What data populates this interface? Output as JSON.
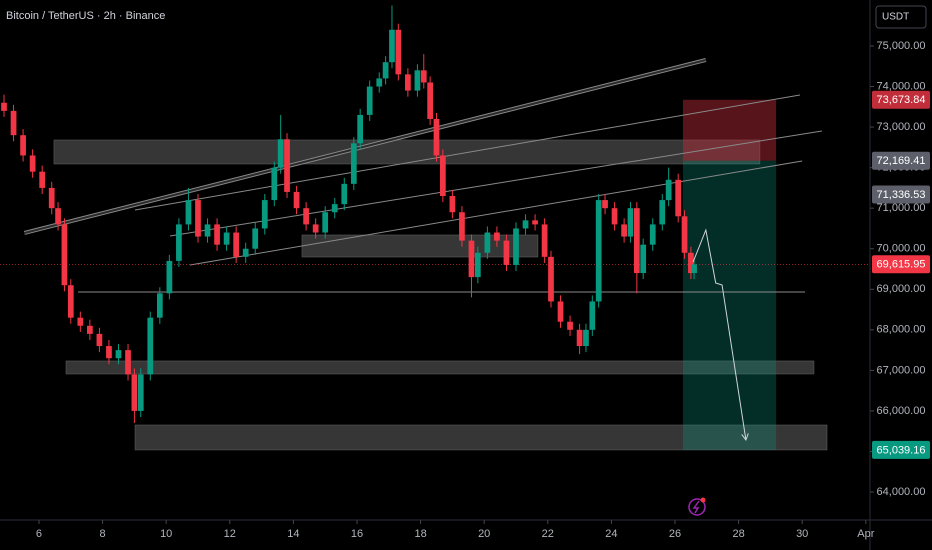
{
  "chart_data": {
    "type": "candlestick",
    "title": "Bitcoin / TetherUS · 2h · Binance",
    "currency": "USDT",
    "up_color": "#089981",
    "down_color": "#f23645",
    "grid": false,
    "xlim": [
      4.774,
      32.132
    ],
    "xticks": [
      6,
      8,
      10,
      12,
      14,
      16,
      18,
      20,
      22,
      24,
      26,
      28,
      30,
      {
        "value": 32,
        "label": "Apr"
      }
    ],
    "ylim": [
      63310,
      76134
    ],
    "yticks": [
      {
        "value": 64000,
        "label": "64,000.00"
      },
      {
        "value": 65000,
        "label": "65,000.00"
      },
      {
        "value": 66000,
        "label": "66,000.00"
      },
      {
        "value": 67000,
        "label": "67,000.00"
      },
      {
        "value": 68000,
        "label": "68,000.00"
      },
      {
        "value": 69000,
        "label": "69,000.00"
      },
      {
        "value": 70000,
        "label": "70,000.00"
      },
      {
        "value": 71000,
        "label": "71,000.00"
      },
      {
        "value": 72000,
        "label": "72,000.00"
      },
      {
        "value": 73000,
        "label": "73,000.00"
      },
      {
        "value": 74000,
        "label": "74,000.00"
      },
      {
        "value": 75000,
        "label": "75,000.00"
      }
    ],
    "x": [
      4.9,
      5.2,
      5.5,
      5.8,
      6.1,
      6.4,
      6.6,
      6.8,
      7.0,
      7.3,
      7.6,
      7.9,
      8.2,
      8.5,
      8.8,
      9.0,
      9.2,
      9.5,
      9.8,
      10.1,
      10.4,
      10.7,
      11.0,
      11.3,
      11.6,
      11.9,
      12.2,
      12.5,
      12.8,
      13.1,
      13.4,
      13.6,
      13.8,
      14.1,
      14.4,
      14.7,
      15.0,
      15.3,
      15.6,
      15.9,
      16.1,
      16.4,
      16.7,
      16.9,
      17.1,
      17.3,
      17.6,
      17.9,
      18.1,
      18.3,
      18.5,
      18.7,
      19.0,
      19.3,
      19.6,
      19.8,
      20.1,
      20.4,
      20.7,
      21.0,
      21.3,
      21.6,
      21.9,
      22.1,
      22.4,
      22.7,
      23.0,
      23.2,
      23.4,
      23.6,
      23.8,
      24.1,
      24.4,
      24.6,
      24.8,
      25.0,
      25.3,
      25.6,
      25.8,
      26.1,
      26.3,
      26.5,
      26.6
    ],
    "open": [
      73600,
      73400,
      72800,
      72300,
      71900,
      71500,
      71000,
      70600,
      69100,
      68300,
      68100,
      67900,
      67600,
      67300,
      67500,
      66900,
      66000,
      66900,
      68300,
      68900,
      69700,
      70600,
      71200,
      70300,
      70600,
      70100,
      70400,
      69800,
      70000,
      70500,
      71200,
      72000,
      72700,
      71400,
      71000,
      70600,
      70400,
      70900,
      71100,
      71600,
      72600,
      73300,
      74000,
      74200,
      74600,
      75400,
      74300,
      73900,
      74400,
      74100,
      73200,
      72300,
      71300,
      70900,
      70200,
      69300,
      69900,
      70400,
      70200,
      69600,
      70500,
      70700,
      70600,
      69800,
      68700,
      68200,
      68000,
      67600,
      68000,
      68700,
      71200,
      71000,
      70600,
      70300,
      71000,
      69400,
      70100,
      70600,
      71200,
      71700,
      70800,
      69900,
      69400
    ],
    "high": [
      73800,
      73550,
      72950,
      72450,
      72050,
      71650,
      71150,
      70750,
      69250,
      68450,
      68250,
      68050,
      67750,
      67650,
      67650,
      67050,
      67050,
      68450,
      69050,
      69850,
      70750,
      71500,
      71350,
      70750,
      70750,
      70550,
      70550,
      70150,
      70650,
      71350,
      72150,
      73300,
      72850,
      71550,
      71150,
      70750,
      71050,
      71250,
      71750,
      72750,
      73450,
      74150,
      74350,
      74750,
      76000,
      75550,
      74450,
      74550,
      74800,
      74250,
      73350,
      72450,
      71450,
      71050,
      70350,
      70050,
      70550,
      70550,
      70350,
      70650,
      70850,
      70850,
      70750,
      69950,
      68850,
      68350,
      68150,
      68150,
      68850,
      71350,
      71350,
      71150,
      70750,
      71150,
      71150,
      70250,
      70750,
      71350,
      72000,
      71850,
      70950,
      70050,
      69750
    ],
    "low": [
      73250,
      72650,
      72150,
      71750,
      71350,
      70850,
      70450,
      68950,
      68150,
      67950,
      67750,
      67450,
      67150,
      67150,
      66750,
      65700,
      65850,
      66750,
      68150,
      68750,
      69550,
      70450,
      70150,
      70150,
      69950,
      69950,
      69650,
      69650,
      69850,
      70350,
      71050,
      71850,
      71250,
      70850,
      70450,
      70250,
      70250,
      70750,
      70950,
      71450,
      72450,
      73150,
      73850,
      74050,
      74450,
      74150,
      73750,
      73750,
      73950,
      73050,
      72150,
      71150,
      70750,
      70050,
      68800,
      69150,
      69750,
      70050,
      69450,
      69450,
      70350,
      70450,
      69650,
      68550,
      68050,
      67850,
      67400,
      67450,
      67850,
      68550,
      70850,
      70450,
      70150,
      70150,
      68900,
      69250,
      69950,
      70450,
      71050,
      70650,
      69750,
      69250,
      69250
    ],
    "close": [
      73400,
      72800,
      72300,
      71900,
      71500,
      71000,
      70600,
      69100,
      68300,
      68100,
      67900,
      67600,
      67300,
      67500,
      66900,
      66000,
      66900,
      68300,
      68900,
      69700,
      70600,
      71200,
      70300,
      70600,
      70100,
      70400,
      69800,
      70000,
      70500,
      71200,
      72000,
      72700,
      71400,
      71000,
      70600,
      70400,
      70900,
      71100,
      71600,
      72600,
      73300,
      74000,
      74200,
      74600,
      75400,
      74300,
      73900,
      74400,
      74100,
      73200,
      72300,
      71300,
      70900,
      70200,
      69300,
      69900,
      70400,
      70200,
      69600,
      70500,
      70700,
      70600,
      69800,
      68700,
      68200,
      68000,
      67600,
      68000,
      68700,
      71200,
      71000,
      70600,
      70300,
      71000,
      69400,
      70100,
      70600,
      71200,
      71700,
      70800,
      69900,
      69400,
      69615.95
    ],
    "zone_color": "#4d4d4d",
    "zones": [
      {
        "x": [
          6.47,
          28.67
        ],
        "y": [
          72090,
          72682
        ]
      },
      {
        "x": [
          14.27,
          21.69
        ],
        "y": [
          69796,
          70339
        ]
      },
      {
        "x": [
          6.85,
          30.37
        ],
        "y": [
          66911,
          67232
        ]
      },
      {
        "x": [
          9.02,
          30.78
        ],
        "y": [
          65037,
          65653
        ]
      }
    ],
    "line_color": "#8a8a8a",
    "trend_lines": [
      {
        "x": [
          5.54,
          26.97
        ],
        "y": [
          70388,
          74655
        ],
        "width": 4
      },
      {
        "x": [
          9.02,
          29.93
        ],
        "y": [
          70956,
          73792
        ],
        "width": 1
      },
      {
        "x": [
          10.12,
          30.62
        ],
        "y": [
          70314,
          72904
        ],
        "width": 1
      },
      {
        "x": [
          10.75,
          30.0
        ],
        "y": [
          69599,
          72164
        ],
        "width": 1
      },
      {
        "x": [
          7.23,
          30.09
        ],
        "y": [
          68934,
          68934
        ],
        "width": 1
      }
    ],
    "position": {
      "x": [
        26.25,
        29.18
      ],
      "stop": {
        "value": 73673.84,
        "label": "73,673.84"
      },
      "entry": {
        "value": 72169.41,
        "label": "72,169.41"
      },
      "target": {
        "value": 65039.16,
        "label": "65,039.16"
      },
      "stop_color": "#c22d3a",
      "entry_color": "#5d606b",
      "target_color": "#089981"
    },
    "arrow": {
      "x": [
        26.57,
        26.97,
        27.28,
        27.48,
        28.23
      ],
      "y": [
        69673,
        70462,
        69155,
        69106,
        65284
      ],
      "color": "#d1d4dc"
    },
    "price_labels": [
      {
        "value": 71336.53,
        "label": "71,336.53",
        "color": "#5d606b"
      },
      {
        "value": 69615.95,
        "label": "69,615.95",
        "color": "#f23645"
      }
    ]
  }
}
